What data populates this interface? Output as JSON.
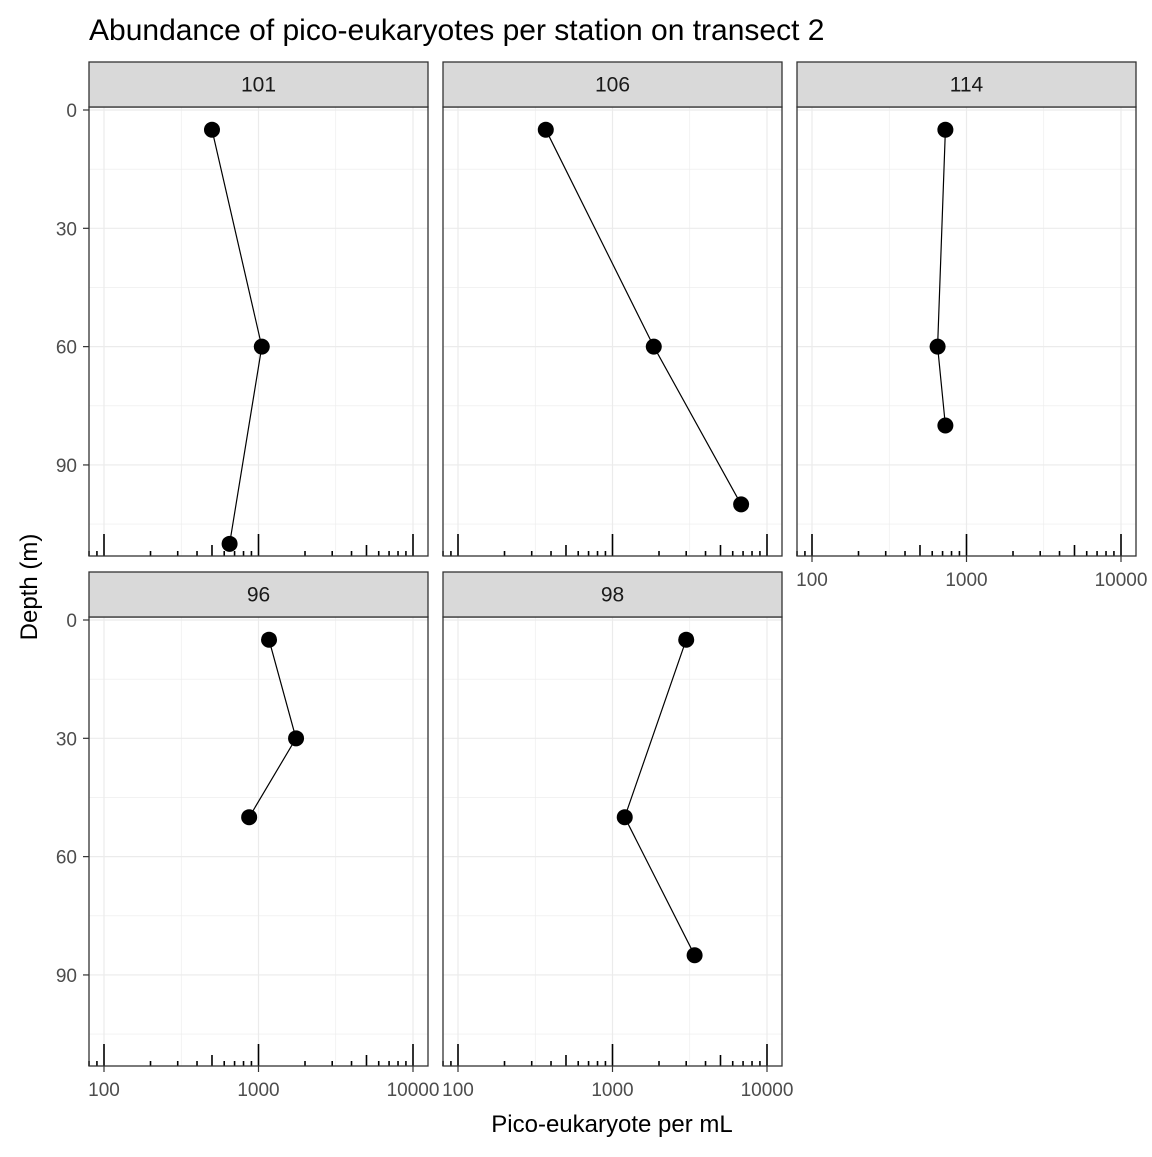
{
  "chart_data": {
    "type": "line",
    "title": "Abundance of pico-eukaryotes per station on transect 2",
    "xlabel": "Pico-eukaryote per mL",
    "ylabel": "Depth (m)",
    "x_scale": "log10",
    "xlim": [
      100,
      10000
    ],
    "x_ticks": [
      100,
      1000,
      10000
    ],
    "x_tick_labels": [
      "100",
      "1000",
      "10000"
    ],
    "y_reversed": true,
    "ylim": [
      0,
      110
    ],
    "y_ticks": [
      0,
      30,
      60,
      90
    ],
    "y_tick_labels": [
      "0",
      "30",
      "60",
      "90"
    ],
    "grid": true,
    "rug": "bottom",
    "colors": {
      "points": "#000000",
      "line": "#000000",
      "strip_bg": "#d9d9d9",
      "grid": "#ebebeb",
      "panel_border": "#333333"
    },
    "panels": [
      {
        "station": "101",
        "series": [
          {
            "x": [
              500,
              1050,
              650
            ],
            "y": [
              5,
              60,
              110
            ]
          }
        ]
      },
      {
        "station": "106",
        "series": [
          {
            "x": [
              370,
              1850,
              6800
            ],
            "y": [
              5,
              60,
              100
            ]
          }
        ]
      },
      {
        "station": "114",
        "series": [
          {
            "x": [
              730,
              650,
              730
            ],
            "y": [
              5,
              60,
              80
            ]
          }
        ]
      },
      {
        "station": "96",
        "series": [
          {
            "x": [
              1170,
              1750,
              870
            ],
            "y": [
              5,
              30,
              50
            ]
          }
        ]
      },
      {
        "station": "98",
        "series": [
          {
            "x": [
              3000,
              1200,
              3400
            ],
            "y": [
              5,
              50,
              85
            ]
          }
        ]
      }
    ]
  }
}
